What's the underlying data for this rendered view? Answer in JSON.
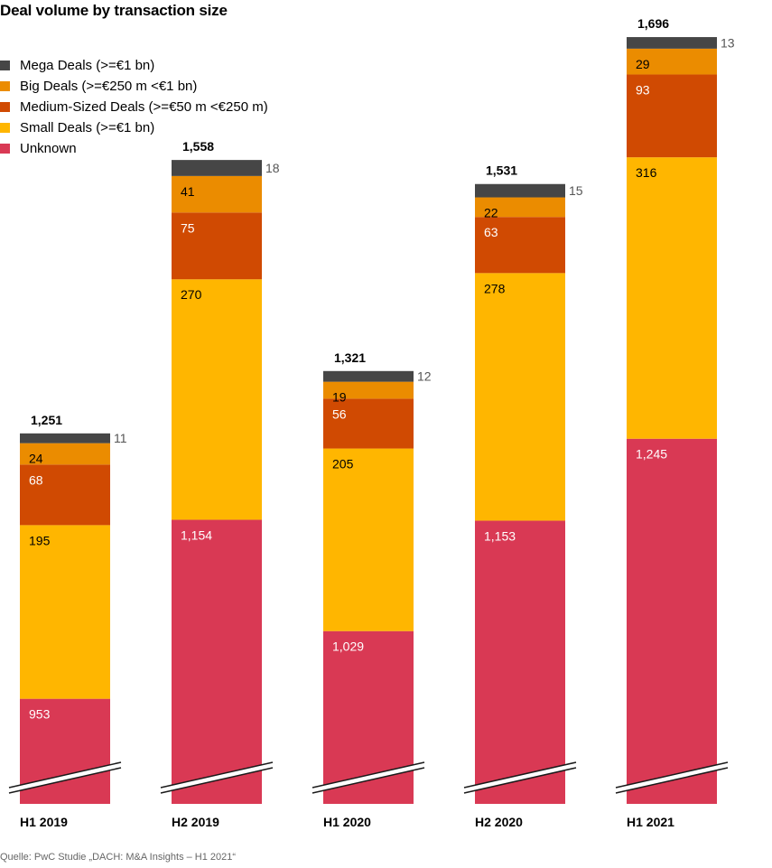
{
  "chart_data": {
    "type": "bar",
    "stacked": true,
    "title": "Deal volume by transaction size",
    "categories": [
      "H1 2019",
      "H2 2019",
      "H1 2020",
      "H2 2020",
      "H1 2021"
    ],
    "totals": [
      "1,251",
      "1,558",
      "1,321",
      "1,531",
      "1,696"
    ],
    "series": [
      {
        "name": "Unknown",
        "color": "#d93954",
        "values": [
          953,
          1154,
          1029,
          1153,
          1245
        ],
        "labels": [
          "953",
          "1,154",
          "1,029",
          "1,153",
          "1,245"
        ]
      },
      {
        "name": "Small Deals (>=€1 bn)",
        "color": "#ffb600",
        "values": [
          195,
          270,
          205,
          278,
          316
        ],
        "labels": [
          "195",
          "270",
          "205",
          "278",
          "316"
        ]
      },
      {
        "name": "Medium-Sized Deals (>=€50 m <€250 m)",
        "color": "#d04a02",
        "values": [
          68,
          75,
          56,
          63,
          93
        ],
        "labels": [
          "68",
          "75",
          "56",
          "63",
          "93"
        ]
      },
      {
        "name": "Big Deals (>=€250 m <€1 bn)",
        "color": "#eb8c00",
        "values": [
          24,
          41,
          19,
          22,
          29
        ],
        "labels": [
          "24",
          "41",
          "19",
          "22",
          "29"
        ]
      },
      {
        "name": "Mega Deals (>=€1 bn)",
        "color": "#464646",
        "values": [
          11,
          18,
          12,
          15,
          13
        ],
        "labels": [
          "11",
          "18",
          "12",
          "15",
          "13"
        ]
      }
    ],
    "legend_order": [
      "Mega Deals (>=€1 bn)",
      "Big Deals (>=€250 m <€1 bn)",
      "Medium-Sized Deals (>=€50 m <€250 m)",
      "Small Deals (>=€1 bn)",
      "Unknown"
    ],
    "axis_break": true,
    "grid": false,
    "legend_position": "top-left"
  },
  "source": "Quelle: PwC Studie „DACH: M&A Insights – H1 2021“"
}
